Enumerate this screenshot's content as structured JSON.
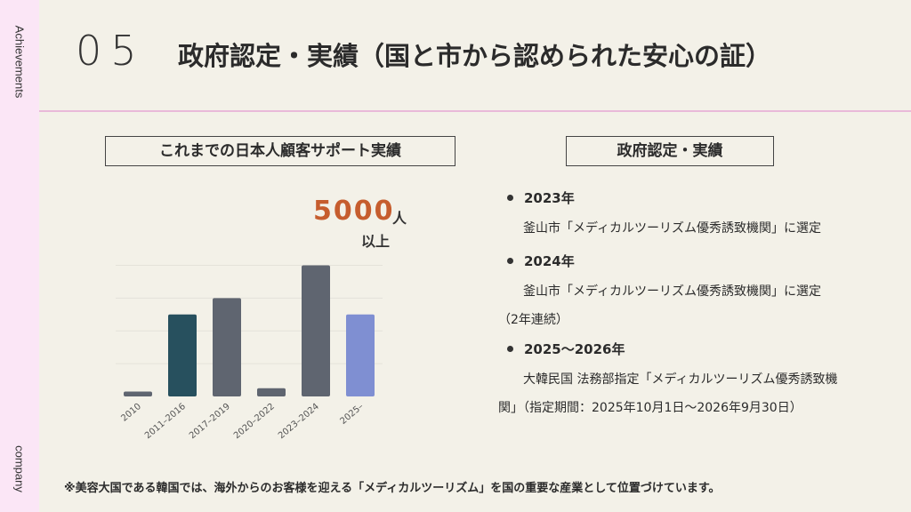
{
  "sidebar": {
    "top_label": "Achievements",
    "bottom_label": "company"
  },
  "header": {
    "number": "05",
    "title": "政府認定・実績（国と市から認められた安心の証）"
  },
  "left_panel": {
    "title": "これまでの日本人顧客サポート実績",
    "highlight_value": "5000",
    "highlight_unit": "人",
    "highlight_suffix": "以上"
  },
  "chart_data": {
    "type": "bar",
    "categories": [
      "2010",
      "2011–2016",
      "2017–2019",
      "2020–2022",
      "2023–2024",
      "2025–"
    ],
    "values": [
      3,
      50,
      60,
      5,
      80,
      50
    ],
    "colors": [
      "#5f6570",
      "#27505e",
      "#5f6570",
      "#5f6570",
      "#5f6570",
      "#7f8fd2"
    ],
    "ylim": [
      0,
      90
    ],
    "grid": true
  },
  "right_panel": {
    "title": "政府認定・実績",
    "items": [
      {
        "year": "2023年",
        "lines": [
          "　釜山市「メディカルツーリズム優秀誘致機関」に選定"
        ]
      },
      {
        "year": "2024年",
        "lines": [
          "　　釜山市「メディカルツーリズム優秀誘致機関」に選定",
          "（2年連続）"
        ]
      },
      {
        "year": "2025〜2026年",
        "lines": [
          "　　大韓民国 法務部指定「メディカルツーリズム優秀誘致機",
          "関」（指定期間：2025年10月1日〜2026年9月30日）"
        ]
      }
    ]
  },
  "footnote": "※美容大国である韓国では、海外からのお客様を迎える「メディカルツーリズム」を国の重要な産業として位置づけています。"
}
